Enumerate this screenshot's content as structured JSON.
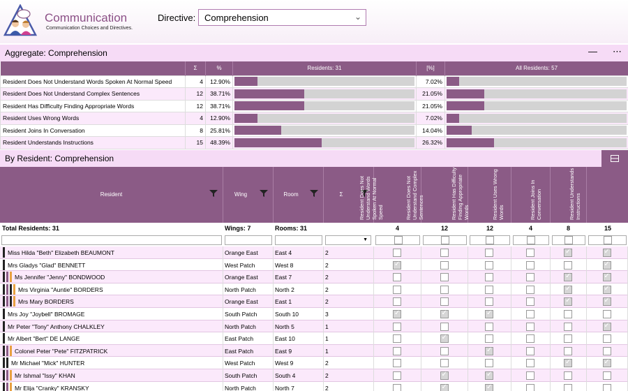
{
  "app": {
    "title": "Communication",
    "subtitle": "Communication Choices and Directives.",
    "directive_label": "Directive:",
    "directive_value": "Comprehension"
  },
  "aggregate": {
    "title": "Aggregate: Comprehension",
    "headers": {
      "sum": "Σ",
      "pct": "%",
      "residents": "Residents: 31",
      "all_pct": "[%]",
      "all_residents": "All Residents: 57"
    },
    "rows": [
      {
        "label": "Resident Does Not Understand Words Spoken At Normal Speed",
        "sum": "4",
        "pct": "12.90%",
        "pct_value": 12.9,
        "all_pct": "7.02%",
        "all_value": 7.02
      },
      {
        "label": "Resident Does Not Understand Complex Sentences",
        "sum": "12",
        "pct": "38.71%",
        "pct_value": 38.71,
        "all_pct": "21.05%",
        "all_value": 21.05
      },
      {
        "label": "Resident Has Difficulty Finding Appropriate Words",
        "sum": "12",
        "pct": "38.71%",
        "pct_value": 38.71,
        "all_pct": "21.05%",
        "all_value": 21.05
      },
      {
        "label": "Resident Uses Wrong Words",
        "sum": "4",
        "pct": "12.90%",
        "pct_value": 12.9,
        "all_pct": "7.02%",
        "all_value": 7.02
      },
      {
        "label": "Resident Joins In Conversation",
        "sum": "8",
        "pct": "25.81%",
        "pct_value": 25.81,
        "all_pct": "14.04%",
        "all_value": 14.04
      },
      {
        "label": "Resident Understands Instructions",
        "sum": "15",
        "pct": "48.39%",
        "pct_value": 48.39,
        "all_pct": "26.32%",
        "all_value": 26.32
      }
    ]
  },
  "by_resident": {
    "title": "By Resident: Comprehension",
    "headers": {
      "resident": "Resident",
      "wing": "Wing",
      "room": "Room",
      "sum": "Σ",
      "c1": "Resident Does Not Understand Words Spoken At Normal Speed",
      "c2": "Resident Does Not Understand Complex Sentences",
      "c3": "Resident Has Difficulty Finding Appropriate Words",
      "c4": "Resident Uses Wrong Words",
      "c5": "Resident Joins In Conversation",
      "c6": "Resident Understands Instructions"
    },
    "totals": {
      "residents": "Total Residents: 31",
      "wings": "Wings: 7",
      "rooms": "Rooms: 31",
      "c1": "4",
      "c2": "12",
      "c3": "12",
      "c4": "4",
      "c5": "8",
      "c6": "15"
    },
    "rows": [
      {
        "name": "Miss Hilda \"Beth\" Elizabeth BEAUMONT",
        "wing": "Orange East",
        "room": "East  4",
        "sum": "2",
        "stripes": [
          "#222"
        ],
        "checks": [
          0,
          0,
          0,
          0,
          1,
          1
        ]
      },
      {
        "name": "Mrs Gladys \"Glad\" BENNETT",
        "wing": "West Patch",
        "room": "West  8",
        "sum": "2",
        "stripes": [
          "#222"
        ],
        "checks": [
          1,
          0,
          0,
          0,
          0,
          1
        ]
      },
      {
        "name": "Ms Jennifer \"Jenny\" BONDWOOD",
        "wing": "Orange East",
        "room": "East  7",
        "sum": "2",
        "stripes": [
          "#222",
          "#8b5b86",
          "#e8a040"
        ],
        "checks": [
          0,
          0,
          0,
          0,
          1,
          1
        ]
      },
      {
        "name": "Mrs Virginia \"Auntie\" BORDERS",
        "wing": "North Patch",
        "room": "North  2",
        "sum": "2",
        "stripes": [
          "#222",
          "#8b5b86",
          "#222",
          "#e8a040"
        ],
        "checks": [
          0,
          0,
          0,
          0,
          1,
          1
        ]
      },
      {
        "name": "Mrs Mary BORDERS",
        "wing": "Orange East",
        "room": "East  1",
        "sum": "2",
        "stripes": [
          "#222",
          "#8b5b86",
          "#222",
          "#e8a040"
        ],
        "checks": [
          0,
          0,
          0,
          0,
          1,
          1
        ]
      },
      {
        "name": "Mrs Joy \"Joybell\" BROMAGE",
        "wing": "South Patch",
        "room": "South 10",
        "sum": "3",
        "stripes": [
          "#222"
        ],
        "checks": [
          1,
          1,
          1,
          0,
          0,
          0
        ]
      },
      {
        "name": "Mr Peter \"Tony\" Anthony CHALKLEY",
        "wing": "North Patch",
        "room": "North  5",
        "sum": "1",
        "stripes": [
          "#222"
        ],
        "checks": [
          0,
          0,
          0,
          0,
          0,
          1
        ]
      },
      {
        "name": "Mr Albert \"Bert\" DE LANGE",
        "wing": "East Patch",
        "room": "East 10",
        "sum": "1",
        "stripes": [
          "#222"
        ],
        "checks": [
          0,
          1,
          0,
          0,
          0,
          0
        ]
      },
      {
        "name": "Colonel Peter \"Pete\" FITZPATRICK",
        "wing": "East Patch",
        "room": "East  9",
        "sum": "1",
        "stripes": [
          "#222",
          "#8b5b86",
          "#e8a040"
        ],
        "checks": [
          0,
          0,
          1,
          0,
          0,
          0
        ]
      },
      {
        "name": "Mr Michael \"Mick\" HUNTER",
        "wing": "West Patch",
        "room": "West  9",
        "sum": "2",
        "stripes": [
          "#222",
          "#222"
        ],
        "checks": [
          0,
          0,
          0,
          0,
          1,
          1
        ]
      },
      {
        "name": "Mr Ishmal \"Issy\" KHAN",
        "wing": "South Patch",
        "room": "South  4",
        "sum": "2",
        "stripes": [
          "#222",
          "#8b5b86",
          "#e8a040"
        ],
        "checks": [
          0,
          1,
          1,
          0,
          0,
          0
        ]
      },
      {
        "name": "Mr Elija \"Cranky\" KRANSKY",
        "wing": "North Patch",
        "room": "North  7",
        "sum": "2",
        "stripes": [
          "#222",
          "#8b5b86",
          "#e8a040"
        ],
        "checks": [
          0,
          1,
          1,
          0,
          0,
          0
        ]
      }
    ]
  },
  "icons": {
    "logo": "people-chat-logo-icon",
    "filter": "filter-icon",
    "dropdown": "chevron-down-icon",
    "panel": "panel-toggle-icon"
  },
  "colors": {
    "accent": "#8b5b86",
    "row_tint": "#fbe9fb",
    "section_bar": "#f6dbf6"
  }
}
